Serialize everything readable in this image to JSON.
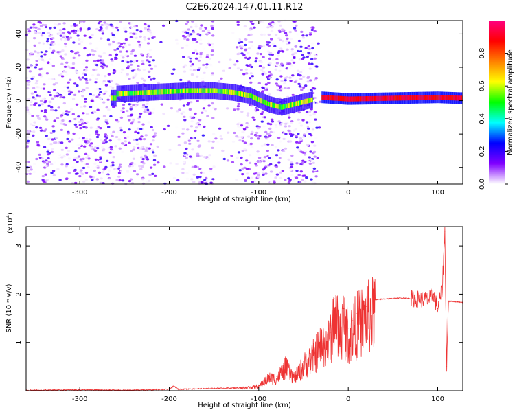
{
  "title": "C2E6.2024.147.01.11.R12",
  "chart_data": [
    {
      "type": "heatmap",
      "xlabel": "Height of straight line (km)",
      "ylabel": "Frequency (Hz)",
      "xlim": [
        -360,
        128
      ],
      "ylim": [
        -50,
        48
      ],
      "xticks": [
        -300,
        -200,
        -100,
        0,
        100
      ],
      "yticks": [
        -40,
        -20,
        0,
        20,
        40
      ],
      "grid": false,
      "description_of_data": "Spectrogram: broadband low-amplitude noise for x < -30 km with vertical gaps near -215..-185, -150..-125 and -35..0; narrow band near 0 Hz; strong (~0.9) line at about 1-2 Hz for x > -30 km",
      "band_center_hz": [
        {
          "x": -260,
          "y": 4
        },
        {
          "x": -220,
          "y": 5
        },
        {
          "x": -180,
          "y": 6
        },
        {
          "x": -150,
          "y": 6
        },
        {
          "x": -130,
          "y": 5
        },
        {
          "x": -110,
          "y": 3
        },
        {
          "x": -90,
          "y": -2
        },
        {
          "x": -75,
          "y": -4
        },
        {
          "x": -30,
          "y": 2
        },
        {
          "x": 0,
          "y": 1
        },
        {
          "x": 50,
          "y": 1.5
        },
        {
          "x": 100,
          "y": 2
        },
        {
          "x": 125,
          "y": 1.5
        }
      ],
      "colorbar": {
        "label": "Normalized spectral amplitude",
        "range": [
          0,
          1
        ],
        "ticks": [
          "0.0",
          "0.2",
          "0.4",
          "0.6",
          "0.8"
        ],
        "colors": [
          "#ffffff",
          "#8000ff",
          "#0000ff",
          "#00ffff",
          "#00ff00",
          "#ffff00",
          "#ff8000",
          "#ff0000",
          "#ff0080"
        ]
      }
    },
    {
      "type": "line",
      "xlabel": "Height of straight line (km)",
      "ylabel": "SNR (10 * v/v)",
      "multiplier_label": "(x10",
      "multiplier_exp": "4",
      "multiplier_close": ")",
      "xlim": [
        -360,
        128
      ],
      "ylim": [
        0,
        3.4
      ],
      "xticks": [
        -300,
        -200,
        -100,
        0,
        100
      ],
      "yticks": [
        1,
        2,
        3
      ],
      "grid": false,
      "color": "#ee3333",
      "series": [
        {
          "x": [
            -360,
            -300,
            -250,
            -200,
            -195,
            -190,
            -150,
            -120,
            -100,
            -90,
            -80,
            -70,
            -60,
            -50,
            -40,
            -30,
            -20,
            -15,
            -10,
            -5,
            0,
            5,
            10,
            20,
            30,
            40,
            60,
            80,
            90,
            95,
            100,
            105,
            108,
            110,
            112,
            115,
            128
          ],
          "y": [
            0.01,
            0.02,
            0.01,
            0.03,
            0.1,
            0.03,
            0.05,
            0.06,
            0.1,
            0.3,
            0.3,
            0.55,
            0.3,
            0.6,
            0.8,
            1.1,
            1.2,
            1.9,
            1.3,
            1.7,
            1.3,
            1.45,
            1.6,
            1.75,
            1.88,
            1.9,
            1.92,
            1.9,
            1.88,
            2.0,
            1.7,
            2.1,
            3.3,
            0.5,
            1.85,
            1.85,
            1.83
          ]
        }
      ]
    }
  ]
}
